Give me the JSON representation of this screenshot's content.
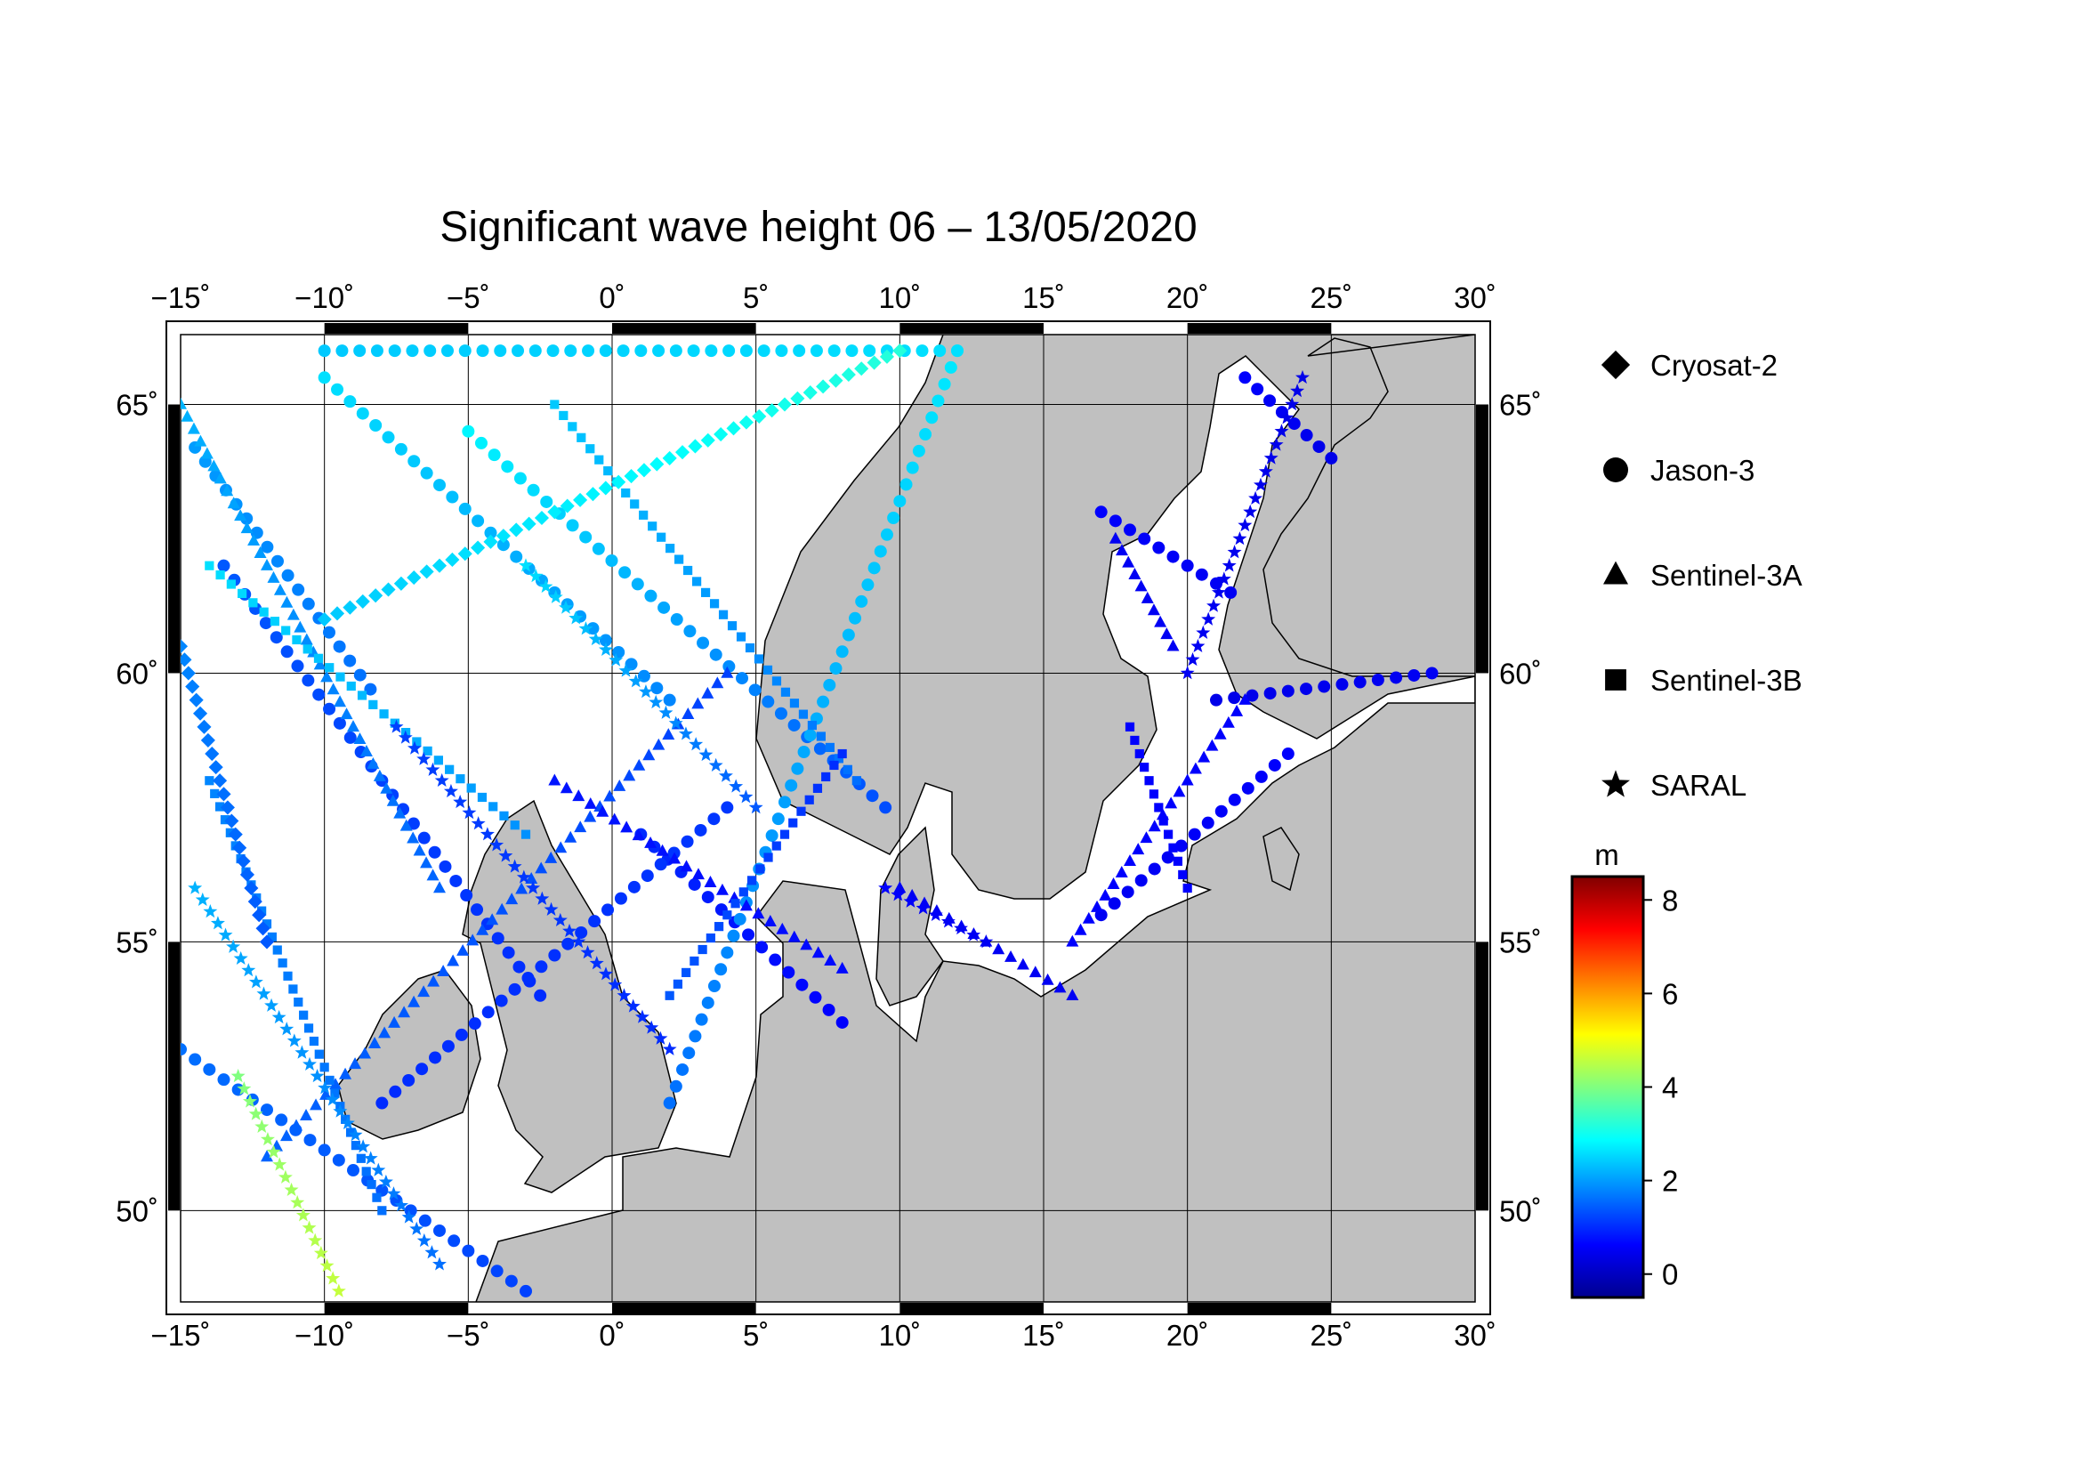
{
  "title": "Significant wave height 06 – 13/05/2020",
  "map": {
    "lon_range": [
      -15,
      30
    ],
    "lat_range": [
      48.3,
      66.3
    ],
    "lon_ticks": [
      -15,
      -10,
      -5,
      0,
      5,
      10,
      15,
      20,
      25,
      30
    ],
    "lat_ticks": [
      50,
      55,
      60,
      65
    ],
    "lon_tick_labels": [
      "−15˚",
      "−10˚",
      "−5˚",
      "0˚",
      "5˚",
      "10˚",
      "15˚",
      "20˚",
      "25˚",
      "30˚"
    ],
    "lat_tick_labels": [
      "50˚",
      "55˚",
      "60˚",
      "65˚"
    ],
    "land_color": "#c0c0c0",
    "sea_color": "#ffffff",
    "grid": true
  },
  "legend": {
    "position": "right",
    "items": [
      {
        "name": "Cryosat-2",
        "symbol": "diamond-icon"
      },
      {
        "name": "Jason-3",
        "symbol": "circle-icon"
      },
      {
        "name": "Sentinel-3A",
        "symbol": "triangle-icon"
      },
      {
        "name": "Sentinel-3B",
        "symbol": "square-icon"
      },
      {
        "name": "SARAL",
        "symbol": "star-icon"
      }
    ]
  },
  "colorbar": {
    "unit": "m",
    "range": [
      -0.5,
      8.5
    ],
    "ticks": [
      0,
      2,
      4,
      6,
      8
    ],
    "tick_labels": [
      "0",
      "2",
      "4",
      "6",
      "8"
    ],
    "colormap": [
      "#00008f",
      "#0000ff",
      "#0080ff",
      "#00ffff",
      "#80ff80",
      "#ffff00",
      "#ff8000",
      "#ff0000",
      "#800000"
    ]
  },
  "chart_data": {
    "type": "scatter",
    "x_label": "",
    "y_label": "",
    "series": [
      {
        "name": "Jason-3",
        "marker": "circle",
        "tracks": [
          {
            "lon": [
              -14.5,
              -8.4
            ],
            "lat": [
              64.2,
              59.7
            ],
            "hs": [
              2.0,
              1.6
            ]
          },
          {
            "lon": [
              -13.5,
              -2.5
            ],
            "lat": [
              62.0,
              54.0
            ],
            "hs": [
              1.4,
              1.0
            ]
          },
          {
            "lon": [
              -10.0,
              2.0
            ],
            "lat": [
              65.5,
              59.5
            ],
            "hs": [
              2.6,
              1.8
            ]
          },
          {
            "lon": [
              -5.0,
              9.5
            ],
            "lat": [
              64.5,
              57.5
            ],
            "hs": [
              2.8,
              1.3
            ]
          },
          {
            "lon": [
              1.0,
              8.0
            ],
            "lat": [
              57.0,
              53.5
            ],
            "hs": [
              1.0,
              0.6
            ]
          },
          {
            "lon": [
              -8.0,
              4.0
            ],
            "lat": [
              52.0,
              57.5
            ],
            "hs": [
              1.0,
              1.1
            ]
          },
          {
            "lon": [
              2.0,
              12.0
            ],
            "lat": [
              52.0,
              66.0
            ],
            "hs": [
              1.6,
              2.7
            ]
          },
          {
            "lon": [
              -10.0,
              12.0
            ],
            "lat": [
              66.0,
              66.0
            ],
            "hs": [
              2.4,
              2.6
            ]
          },
          {
            "lon": [
              -15.0,
              -3.0
            ],
            "lat": [
              53.0,
              48.5
            ],
            "hs": [
              1.6,
              1.2
            ]
          },
          {
            "lon": [
              22.0,
              25.0
            ],
            "lat": [
              65.5,
              64.0
            ],
            "hs": [
              0.6,
              0.4
            ]
          },
          {
            "lon": [
              17.0,
              21.5
            ],
            "lat": [
              63.0,
              61.5
            ],
            "hs": [
              0.6,
              0.5
            ]
          },
          {
            "lon": [
              21.0,
              28.5
            ],
            "lat": [
              59.5,
              60.0
            ],
            "hs": [
              0.4,
              0.5
            ]
          },
          {
            "lon": [
              17.0,
              23.5
            ],
            "lat": [
              55.5,
              58.5
            ],
            "hs": [
              0.5,
              0.6
            ]
          }
        ]
      },
      {
        "name": "Sentinel-3A",
        "marker": "triangle",
        "tracks": [
          {
            "lon": [
              -15.0,
              -6.0
            ],
            "lat": [
              65.0,
              56.0
            ],
            "hs": [
              2.2,
              1.5
            ]
          },
          {
            "lon": [
              -12.0,
              4.0
            ],
            "lat": [
              51.0,
              60.0
            ],
            "hs": [
              1.5,
              1.2
            ]
          },
          {
            "lon": [
              -2.0,
              8.0
            ],
            "lat": [
              58.0,
              54.5
            ],
            "hs": [
              0.8,
              0.7
            ]
          },
          {
            "lon": [
              10.0,
              16.0
            ],
            "lat": [
              56.0,
              54.0
            ],
            "hs": [
              0.5,
              0.5
            ]
          },
          {
            "lon": [
              16.0,
              22.0
            ],
            "lat": [
              55.0,
              59.5
            ],
            "hs": [
              0.6,
              0.6
            ]
          },
          {
            "lon": [
              17.5,
              19.5
            ],
            "lat": [
              62.5,
              60.5
            ],
            "hs": [
              0.5,
              0.5
            ]
          }
        ]
      },
      {
        "name": "Sentinel-3B",
        "marker": "square",
        "tracks": [
          {
            "lon": [
              -14.0,
              -3.0
            ],
            "lat": [
              62.0,
              57.0
            ],
            "hs": [
              2.6,
              1.9
            ]
          },
          {
            "lon": [
              -2.0,
              8.5
            ],
            "lat": [
              65.0,
              58.0
            ],
            "hs": [
              2.4,
              1.6
            ]
          },
          {
            "lon": [
              2.0,
              8.0
            ],
            "lat": [
              54.0,
              58.5
            ],
            "hs": [
              1.4,
              1.0
            ]
          },
          {
            "lon": [
              -14.0,
              -8.0
            ],
            "lat": [
              58.0,
              50.0
            ],
            "hs": [
              1.8,
              1.6
            ]
          },
          {
            "lon": [
              18.0,
              20.0
            ],
            "lat": [
              59.0,
              56.0
            ],
            "hs": [
              0.6,
              0.6
            ]
          }
        ]
      },
      {
        "name": "SARAL",
        "marker": "star",
        "tracks": [
          {
            "lon": [
              -14.5,
              -6.0
            ],
            "lat": [
              56.0,
              49.0
            ],
            "hs": [
              2.2,
              1.6
            ]
          },
          {
            "lon": [
              -13.0,
              -9.5
            ],
            "lat": [
              52.5,
              48.5
            ],
            "hs": [
              4.0,
              4.6
            ]
          },
          {
            "lon": [
              -7.5,
              2.0
            ],
            "lat": [
              59.0,
              53.0
            ],
            "hs": [
              1.2,
              1.0
            ]
          },
          {
            "lon": [
              -3.0,
              5.0
            ],
            "lat": [
              62.0,
              57.5
            ],
            "hs": [
              2.6,
              1.4
            ]
          },
          {
            "lon": [
              9.5,
              13.0
            ],
            "lat": [
              56.0,
              55.0
            ],
            "hs": [
              0.6,
              0.5
            ]
          },
          {
            "lon": [
              20.0,
              24.0
            ],
            "lat": [
              60.0,
              65.5
            ],
            "hs": [
              0.5,
              0.4
            ]
          }
        ]
      },
      {
        "name": "Cryosat-2",
        "marker": "diamond",
        "tracks": [
          {
            "lon": [
              -10.0,
              10.0
            ],
            "lat": [
              61.0,
              66.0
            ],
            "hs": [
              2.4,
              3.2
            ]
          },
          {
            "lon": [
              -15.0,
              -12.0
            ],
            "lat": [
              60.5,
              55.0
            ],
            "hs": [
              1.8,
              1.4
            ]
          }
        ]
      }
    ]
  }
}
